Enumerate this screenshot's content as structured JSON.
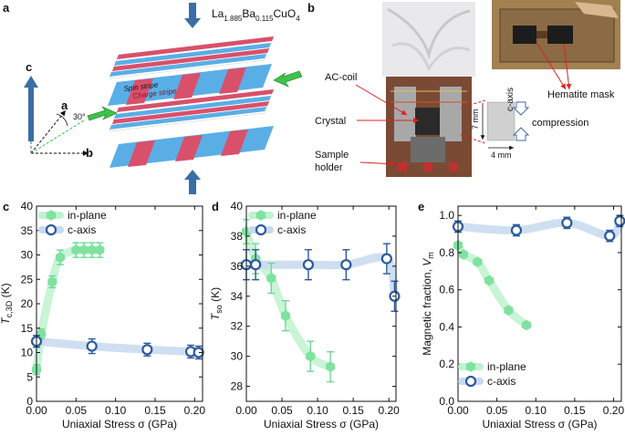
{
  "panel_labels": [
    "a",
    "b",
    "c",
    "d",
    "e"
  ],
  "schematic": {
    "formula_main": "La",
    "formula_sub1": "1.885",
    "formula_mid": "Ba",
    "formula_sub2": "0.115",
    "formula_end": "CuO",
    "formula_sub3": "4",
    "spin_stripe": "Spin stripe",
    "charge_stripe": "Charge stripe",
    "axis_c": "c",
    "axis_a": "a",
    "axis_b": "b",
    "angle": "30°",
    "colors": {
      "spin": "#5aaee6",
      "charge": "#d9506b",
      "arrow_blue": "#3a6ea5",
      "arrow_green": "#3ec24a"
    }
  },
  "photo_panel": {
    "ac_coil": "AC-coil",
    "crystal": "Crystal",
    "sample_holder_1": "Sample",
    "sample_holder_2": "holder",
    "hematite_mask": "Hematite mask",
    "c_axis": "c-axis",
    "compression": "compression",
    "dim_vertical": "7 mm",
    "dim_horizontal": "4 mm"
  },
  "chart_data": [
    {
      "type": "scatter",
      "panel": "c",
      "xlabel": "Uniaxial Stress σ (GPa)",
      "ylabel_main": "T",
      "ylabel_sub": "c,3D",
      "ylabel_unit": " (K)",
      "xlim": [
        0,
        0.21
      ],
      "ylim": [
        0,
        40
      ],
      "xticks": [
        "0.00",
        "0.05",
        "0.10",
        "0.15",
        "0.20"
      ],
      "yticks": [
        "0",
        "5",
        "10",
        "15",
        "20",
        "25",
        "30",
        "35",
        "40"
      ],
      "legend": [
        "in-plane",
        "c-axis"
      ],
      "series": [
        {
          "name": "in-plane",
          "marker": "hexagon",
          "color": "#7ee3a0",
          "x": [
            0.0,
            0.006,
            0.02,
            0.03,
            0.05,
            0.06,
            0.07,
            0.08
          ],
          "y": [
            6.5,
            13.8,
            24.5,
            29.5,
            31.0,
            31.0,
            31.0,
            31.0
          ],
          "err": [
            1.0,
            1.0,
            1.2,
            1.5,
            1.5,
            1.5,
            1.5,
            1.5
          ]
        },
        {
          "name": "c-axis",
          "marker": "circle",
          "color": "#2b5a9a",
          "x": [
            0.0,
            0.07,
            0.14,
            0.195,
            0.205
          ],
          "y": [
            12.3,
            11.3,
            10.6,
            10.2,
            10.0
          ],
          "err": [
            1.2,
            1.5,
            1.3,
            1.3,
            1.3
          ]
        }
      ]
    },
    {
      "type": "scatter",
      "panel": "d",
      "xlabel": "Uniaxial Stress σ (GPa)",
      "ylabel_main": "T",
      "ylabel_sub": "so",
      "ylabel_unit": " (K)",
      "xlim": [
        0,
        0.21
      ],
      "ylim": [
        27,
        40
      ],
      "xticks": [
        "0.00",
        "0.05",
        "0.10",
        "0.15",
        "0.20"
      ],
      "yticks": [
        "28",
        "30",
        "32",
        "34",
        "36",
        "38",
        "40"
      ],
      "legend": [
        "in-plane",
        "c-axis"
      ],
      "series": [
        {
          "name": "in-plane",
          "marker": "hexagon",
          "color": "#7ee3a0",
          "x": [
            0.0,
            0.013,
            0.035,
            0.055,
            0.09,
            0.118
          ],
          "y": [
            38.3,
            36.5,
            35.2,
            32.7,
            30.0,
            29.3
          ],
          "err": [
            0.8,
            1.0,
            1.0,
            1.0,
            1.0,
            1.0
          ]
        },
        {
          "name": "c-axis",
          "marker": "circle",
          "color": "#2b5a9a",
          "x": [
            0.0,
            0.013,
            0.087,
            0.14,
            0.197,
            0.208
          ],
          "y": [
            36.1,
            36.1,
            36.1,
            36.1,
            36.5,
            34.0
          ],
          "err": [
            1.0,
            1.0,
            1.0,
            1.0,
            1.0,
            1.0
          ]
        }
      ]
    },
    {
      "type": "scatter",
      "panel": "e",
      "xlabel": "Uniaxial Stress σ (GPa)",
      "ylabel_main": "Magnetic fraction, ",
      "ylabel_var": "V",
      "ylabel_sub": "m",
      "xlim": [
        0,
        0.21
      ],
      "ylim": [
        0,
        1.05
      ],
      "xticks": [
        "0.00",
        "0.05",
        "0.10",
        "0.15",
        "0.20"
      ],
      "yticks": [
        "0.0",
        "0.2",
        "0.4",
        "0.6",
        "0.8",
        "1.0"
      ],
      "legend": [
        "in-plane",
        "c-axis"
      ],
      "series": [
        {
          "name": "in-plane",
          "marker": "hexagon",
          "color": "#7ee3a0",
          "x": [
            0.0,
            0.007,
            0.025,
            0.04,
            0.065,
            0.088
          ],
          "y": [
            0.84,
            0.79,
            0.75,
            0.65,
            0.49,
            0.41
          ],
          "err": [
            0.01,
            0.01,
            0.01,
            0.01,
            0.01,
            0.01
          ]
        },
        {
          "name": "c-axis",
          "marker": "circle",
          "color": "#2b5a9a",
          "x": [
            0.0,
            0.075,
            0.14,
            0.195,
            0.208
          ],
          "y": [
            0.94,
            0.92,
            0.96,
            0.89,
            0.97
          ],
          "err": [
            0.03,
            0.03,
            0.03,
            0.03,
            0.03
          ]
        }
      ]
    }
  ]
}
